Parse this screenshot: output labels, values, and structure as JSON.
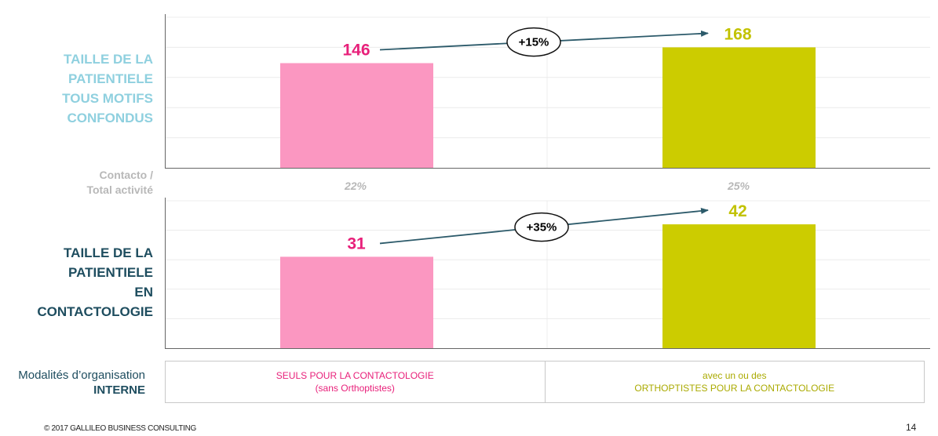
{
  "colors": {
    "seuls": "#fb97c1",
    "avec": "#cccc00",
    "seuls_label": "#e8207a",
    "avec_label": "#c2c200",
    "arrow": "#2c5a6a"
  },
  "labels": {
    "top_left": [
      "TAILLE DE LA",
      "PATIENTIELE",
      "TOUS MOTIFS",
      "CONFONDUS"
    ],
    "bottom_left": [
      "TAILLE DE LA",
      "PATIENTIELE",
      "EN",
      "CONTACTOLOGIE"
    ],
    "ratio_label": [
      "Contacto /",
      "Total activité"
    ],
    "ratio_values": [
      "22%",
      "25%"
    ],
    "org_label_line1": "Modalités d’organisation",
    "org_label_line2": "INTERNE",
    "org_left_line1": "SEULS POUR LA CONTACTOLOGIE",
    "org_left_line2": "(sans Orthoptistes)",
    "org_right_line1": "avec un ou des",
    "org_right_line2": "ORTHOPTISTES POUR LA CONTACTOLOGIE",
    "footer": "© 2017 GALLILEO BUSINESS CONSULTING",
    "page_number": "14"
  },
  "chart_data": [
    {
      "type": "bar",
      "categories": [
        "SEULS POUR LA CONTACTOLOGIE",
        "ORTHOPTISTES POUR LA CONTACTOLOGIE"
      ],
      "values": [
        146,
        168
      ],
      "value_labels": [
        "146",
        "168"
      ],
      "growth_label": "+15%",
      "ylim": [
        0,
        210
      ],
      "grid": true
    },
    {
      "type": "bar",
      "categories": [
        "SEULS POUR LA CONTACTOLOGIE",
        "ORTHOPTISTES POUR LA CONTACTOLOGIE"
      ],
      "values": [
        31,
        42
      ],
      "value_labels": [
        "31",
        "42"
      ],
      "growth_label": "+35%",
      "ylim": [
        0,
        50
      ],
      "grid": true
    }
  ]
}
